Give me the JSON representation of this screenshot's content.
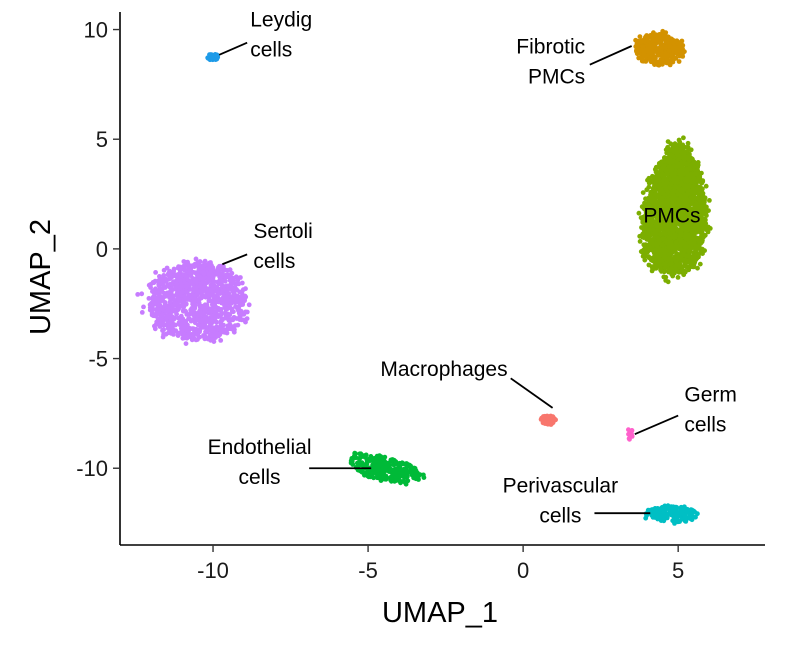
{
  "chart_data": {
    "type": "scatter",
    "title": "",
    "xlabel": "UMAP_1",
    "ylabel": "UMAP_2",
    "xlim": [
      -13.0,
      7.8
    ],
    "ylim": [
      -13.5,
      10.8
    ],
    "xticks": [
      -10,
      -5,
      0,
      5
    ],
    "yticks": [
      10,
      5,
      0,
      -5,
      -10
    ],
    "xtick_labels": [
      "-10",
      "-5",
      "0",
      "5"
    ],
    "ytick_labels": [
      "10",
      "5",
      "0",
      "-5",
      "-10"
    ],
    "grid": false,
    "legend": "none",
    "clusters": [
      {
        "name": "Leydig cells",
        "label_lines": [
          "Leydig",
          "cells"
        ],
        "color": "#1E9BE8",
        "center": [
          -10.0,
          8.75
        ],
        "spread": [
          0.17,
          0.14
        ],
        "n_points": 40,
        "label_anchor": [
          -8.8,
          10.15
        ],
        "label_align": "start",
        "leader": [
          [
            -8.9,
            9.4
          ],
          [
            -9.8,
            8.85
          ]
        ]
      },
      {
        "name": "Fibrotic PMCs",
        "label_lines": [
          "Fibrotic",
          "PMCs"
        ],
        "color": "#D39200",
        "center": [
          4.4,
          9.1
        ],
        "spread": [
          0.75,
          0.75
        ],
        "n_points": 340,
        "label_anchor": [
          2.0,
          8.9
        ],
        "label_align": "end",
        "leader": [
          [
            2.15,
            8.4
          ],
          [
            3.5,
            9.25
          ]
        ]
      },
      {
        "name": "PMCs",
        "label_lines": [
          "PMCs"
        ],
        "color": "#7CAE00",
        "center": [
          5.0,
          1.8
        ],
        "spread": [
          1.2,
          2.9
        ],
        "n_points": 2200,
        "label_anchor": [
          4.8,
          1.2
        ],
        "label_align": "middle",
        "leader": []
      },
      {
        "name": "Sertoli cells",
        "label_lines": [
          "Sertoli",
          "cells"
        ],
        "color": "#C77CFF",
        "center": [
          -10.5,
          -2.4
        ],
        "spread": [
          1.6,
          1.75
        ],
        "n_points": 1000,
        "label_anchor": [
          -8.7,
          0.5
        ],
        "label_align": "start",
        "leader": [
          [
            -8.9,
            -0.25
          ],
          [
            -9.7,
            -0.7
          ]
        ]
      },
      {
        "name": "Macrophages",
        "label_lines": [
          "Macrophages"
        ],
        "color": "#F8766D",
        "center": [
          0.8,
          -7.8
        ],
        "spread": [
          0.25,
          0.22
        ],
        "n_points": 40,
        "label_anchor": [
          -0.5,
          -5.8
        ],
        "label_align": "end",
        "leader": [
          [
            -0.4,
            -5.9
          ],
          [
            0.95,
            -7.25
          ]
        ]
      },
      {
        "name": "Germ cells",
        "label_lines": [
          "Germ",
          "cells"
        ],
        "color": "#FF61CC",
        "center": [
          3.45,
          -8.45
        ],
        "spread": [
          0.08,
          0.28
        ],
        "n_points": 12,
        "label_anchor": [
          5.2,
          -6.95
        ],
        "label_align": "start",
        "leader": [
          [
            5.0,
            -7.6
          ],
          [
            3.6,
            -8.45
          ]
        ]
      },
      {
        "name": "Endothelial cells",
        "label_lines": [
          "Endothelial",
          "cells"
        ],
        "color": "#00BA38",
        "center": [
          -4.5,
          -10.0
        ],
        "spread": [
          1.2,
          0.55
        ],
        "n_points": 260,
        "label_anchor": [
          -8.5,
          -9.35
        ],
        "label_align": "middle",
        "leader": [
          [
            -6.9,
            -10.0
          ],
          [
            -4.9,
            -10.0
          ]
        ]
      },
      {
        "name": "Perivascular cells",
        "label_lines": [
          "Perivascular",
          "cells"
        ],
        "color": "#00BFC4",
        "center": [
          4.8,
          -12.1
        ],
        "spread": [
          0.8,
          0.36
        ],
        "n_points": 170,
        "label_anchor": [
          1.2,
          -11.1
        ],
        "label_align": "middle",
        "leader": [
          [
            2.3,
            -12.05
          ],
          [
            4.1,
            -12.05
          ]
        ]
      }
    ]
  }
}
